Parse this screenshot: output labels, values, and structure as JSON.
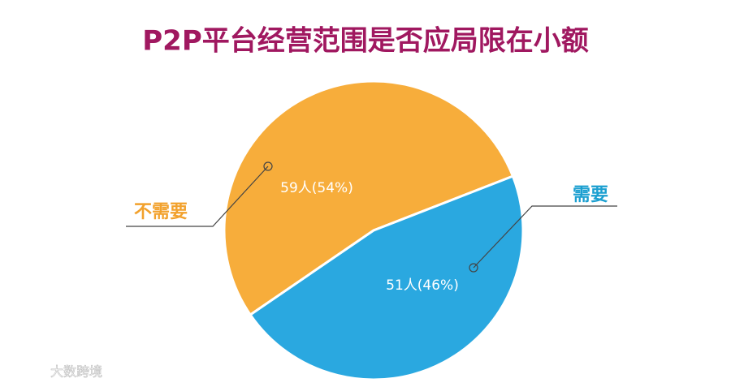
{
  "chart_data": {
    "type": "pie",
    "title": "P2P平台经营范围是否应局限在小额",
    "categories": [
      "不需要",
      "需要"
    ],
    "values": [
      59,
      51
    ],
    "value_labels": [
      "59人(54%)",
      "51人(46%)"
    ],
    "colors": [
      "#f7ad3b",
      "#2aa8e0"
    ],
    "watermark": "大数跨境"
  }
}
